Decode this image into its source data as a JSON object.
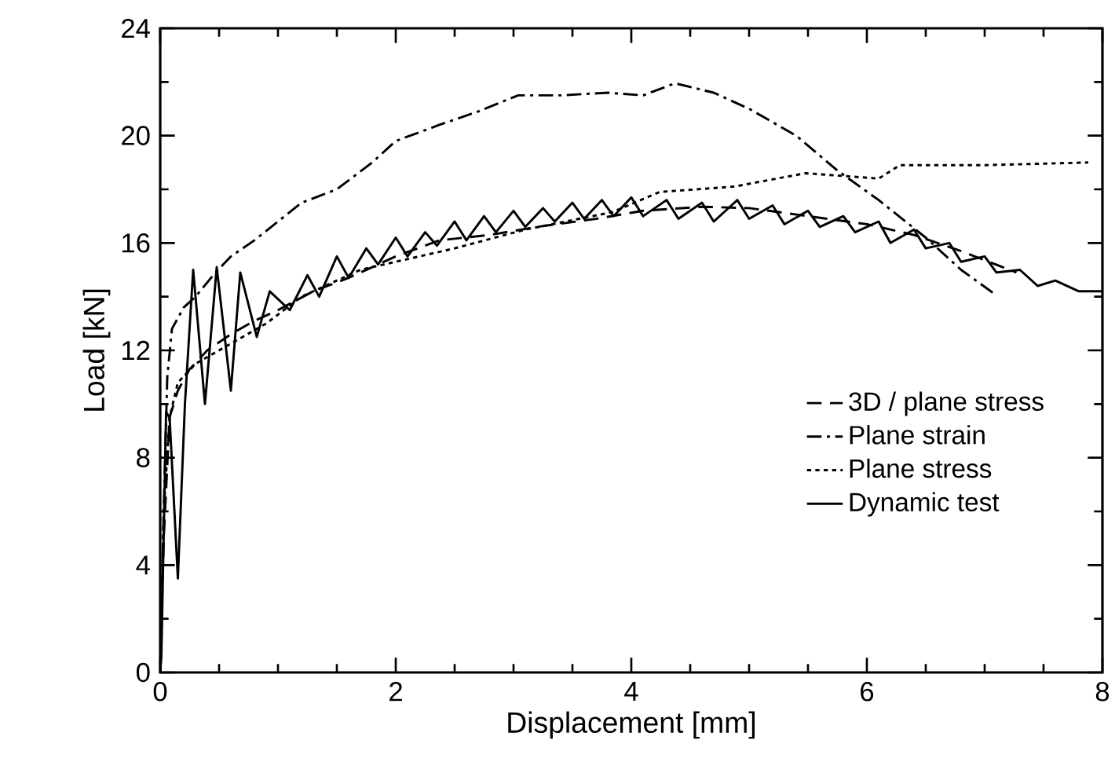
{
  "chart_data": {
    "type": "line",
    "xlabel": "Displacement  [mm]",
    "ylabel": "Load [kN]",
    "xlim": [
      0,
      8
    ],
    "ylim": [
      0,
      24
    ],
    "xticks": [
      0,
      2,
      4,
      6,
      8
    ],
    "yticks": [
      0,
      4,
      8,
      12,
      16,
      20,
      24
    ],
    "grid": false,
    "legend": "right",
    "marker": "none",
    "series": [
      {
        "name": "3D / plane stress",
        "color": "#000000",
        "line_style": "dashed",
        "x": [
          0,
          0.03,
          0.08,
          0.15,
          0.25,
          0.4,
          0.6,
          0.8,
          1.0,
          1.3,
          1.6,
          2.0,
          2.37,
          2.8,
          3.2,
          3.7,
          4.1,
          4.6,
          5.0,
          5.5,
          6.0,
          6.4,
          6.8,
          7.27
        ],
        "values": [
          0,
          5,
          9.5,
          10.5,
          11.3,
          12.0,
          12.6,
          13.1,
          13.5,
          14.2,
          14.7,
          15.5,
          16.1,
          16.3,
          16.6,
          16.9,
          17.2,
          17.35,
          17.3,
          17.0,
          16.7,
          16.3,
          15.7,
          14.9
        ]
      },
      {
        "name": "Plane strain",
        "color": "#000000",
        "line_style": "dashdot",
        "x": [
          0,
          0.03,
          0.06,
          0.1,
          0.2,
          0.3,
          0.45,
          0.6,
          0.8,
          1.0,
          1.2,
          1.5,
          1.8,
          2.0,
          2.37,
          2.7,
          3.04,
          3.4,
          3.8,
          4.1,
          4.37,
          4.7,
          5.0,
          5.4,
          5.75,
          6.1,
          6.5,
          6.8,
          7.1
        ],
        "values": [
          0,
          6,
          11,
          12.8,
          13.6,
          14.0,
          14.8,
          15.5,
          16.1,
          16.8,
          17.5,
          18.0,
          19.0,
          19.8,
          20.4,
          20.9,
          21.5,
          21.5,
          21.6,
          21.5,
          21.95,
          21.6,
          21.0,
          20.0,
          18.7,
          17.6,
          16.2,
          15.0,
          14.05
        ]
      },
      {
        "name": "Plane stress",
        "color": "#000000",
        "line_style": "dotted",
        "x": [
          0,
          0.03,
          0.08,
          0.15,
          0.3,
          0.5,
          0.9,
          1.2,
          1.7,
          2.5,
          3.1,
          3.84,
          4.24,
          4.87,
          5.48,
          6.1,
          6.28,
          7.0,
          7.88
        ],
        "values": [
          0,
          6,
          9.5,
          10.8,
          11.5,
          12.0,
          13.0,
          14.0,
          15.0,
          15.8,
          16.5,
          17.15,
          17.9,
          18.1,
          18.6,
          18.4,
          18.9,
          18.9,
          19.0
        ]
      },
      {
        "name": "Dynamic test",
        "color": "#000000",
        "line_style": "solid",
        "x": [
          0,
          0.01,
          0.05,
          0.08,
          0.15,
          0.21,
          0.28,
          0.38,
          0.48,
          0.6,
          0.68,
          0.82,
          0.93,
          1.1,
          1.25,
          1.35,
          1.5,
          1.6,
          1.75,
          1.85,
          2.0,
          2.1,
          2.25,
          2.35,
          2.5,
          2.6,
          2.75,
          2.85,
          3.0,
          3.1,
          3.25,
          3.35,
          3.5,
          3.6,
          3.75,
          3.85,
          4.0,
          4.1,
          4.3,
          4.4,
          4.6,
          4.7,
          4.9,
          5.0,
          5.2,
          5.3,
          5.5,
          5.6,
          5.8,
          5.9,
          6.1,
          6.2,
          6.4,
          6.5,
          6.7,
          6.8,
          7.0,
          7.1,
          7.3,
          7.45,
          7.6,
          7.8,
          8.0
        ],
        "values": [
          0,
          0.6,
          9.7,
          9.5,
          3.5,
          10.0,
          15.0,
          10.0,
          15.1,
          10.5,
          14.9,
          12.5,
          14.2,
          13.5,
          14.8,
          14.0,
          15.5,
          14.7,
          15.8,
          15.2,
          16.2,
          15.5,
          16.4,
          15.9,
          16.8,
          16.1,
          17.0,
          16.4,
          17.2,
          16.6,
          17.3,
          16.8,
          17.5,
          16.9,
          17.6,
          17.0,
          17.7,
          17.0,
          17.6,
          16.9,
          17.5,
          16.8,
          17.6,
          16.9,
          17.4,
          16.7,
          17.2,
          16.6,
          17.0,
          16.4,
          16.8,
          16.0,
          16.5,
          15.8,
          16.0,
          15.3,
          15.5,
          14.9,
          15.0,
          14.4,
          14.6,
          14.2,
          14.2
        ]
      }
    ]
  }
}
